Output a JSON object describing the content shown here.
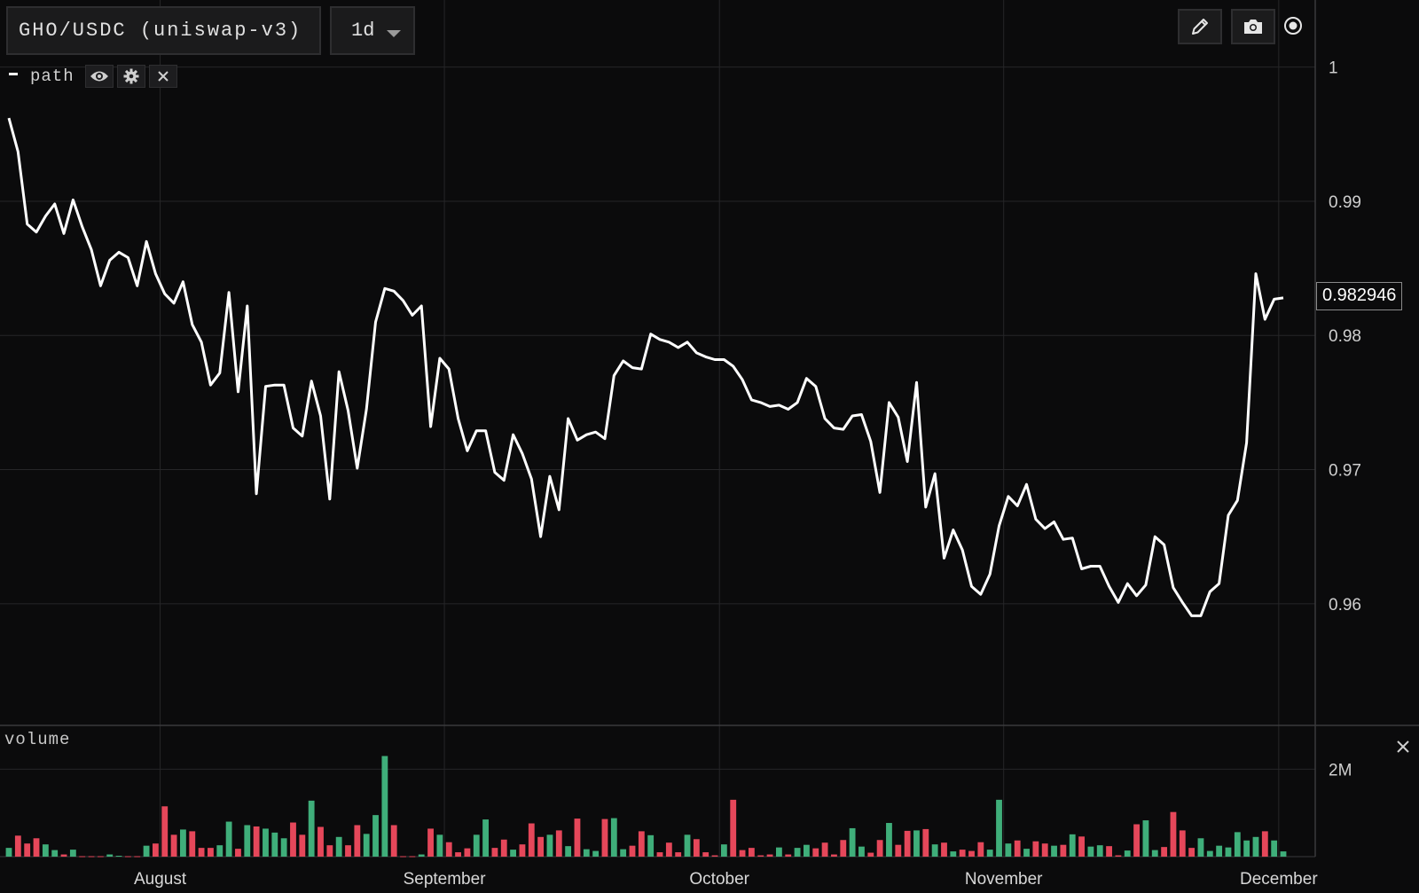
{
  "header": {
    "symbol": "GHO/USDC (uniswap-v3)",
    "interval": "1d"
  },
  "toolbar": {
    "draw_icon": "pencil-icon",
    "snapshot_icon": "camera-icon",
    "record_icon": "record-icon"
  },
  "legend": {
    "series_label": "path",
    "visibility_icon": "eye-icon",
    "settings_icon": "gear-icon",
    "remove_icon": "close-icon"
  },
  "price_tag": "0.982946",
  "volume_pane": {
    "label": "volume",
    "close_icon": "close-icon"
  },
  "colors": {
    "background": "#0b0b0c",
    "line": "#ffffff",
    "grid": "#262628",
    "volume_up": "#3fae7a",
    "volume_down": "#e5475a"
  },
  "chart_data": {
    "type": "line",
    "title": "GHO/USDC (uniswap-v3)",
    "series": [
      {
        "name": "path",
        "values": [
          0.9962,
          0.9937,
          0.9883,
          0.9877,
          0.9889,
          0.9898,
          0.9876,
          0.9901,
          0.9881,
          0.9864,
          0.9837,
          0.9856,
          0.9862,
          0.9858,
          0.9837,
          0.987,
          0.9846,
          0.9831,
          0.9824,
          0.984,
          0.9808,
          0.9795,
          0.9763,
          0.9772,
          0.9832,
          0.9758,
          0.9822,
          0.9682,
          0.9762,
          0.9763,
          0.9763,
          0.9731,
          0.9725,
          0.9766,
          0.974,
          0.9678,
          0.9773,
          0.9744,
          0.9701,
          0.9745,
          0.981,
          0.9835,
          0.9833,
          0.9826,
          0.9815,
          0.9822,
          0.9732,
          0.9783,
          0.9775,
          0.9738,
          0.9714,
          0.9729,
          0.9729,
          0.9698,
          0.9692,
          0.9726,
          0.9712,
          0.9693,
          0.965,
          0.9695,
          0.967,
          0.9738,
          0.9722,
          0.9726,
          0.9728,
          0.9723,
          0.977,
          0.9781,
          0.9776,
          0.9775,
          0.9801,
          0.9797,
          0.9795,
          0.9791,
          0.9795,
          0.9787,
          0.9784,
          0.9782,
          0.9782,
          0.9777,
          0.9767,
          0.9752,
          0.975,
          0.9747,
          0.9748,
          0.9745,
          0.975,
          0.9768,
          0.9762,
          0.9738,
          0.9731,
          0.973,
          0.974,
          0.9741,
          0.9721,
          0.9683,
          0.975,
          0.9739,
          0.9706,
          0.9765,
          0.9672,
          0.9697,
          0.9634,
          0.9655,
          0.964,
          0.9613,
          0.9607,
          0.9622,
          0.9658,
          0.968,
          0.9673,
          0.9689,
          0.9663,
          0.9656,
          0.9661,
          0.9648,
          0.9649,
          0.9626,
          0.9628,
          0.9628,
          0.9613,
          0.9601,
          0.9615,
          0.9606,
          0.9614,
          0.965,
          0.9644,
          0.9612,
          0.9601,
          0.9591,
          0.9591,
          0.9609,
          0.9615,
          0.9666,
          0.9677,
          0.972,
          0.9846,
          0.9812,
          0.9827,
          0.9828
        ]
      }
    ],
    "x_labels": [
      "August",
      "September",
      "October",
      "November",
      "December"
    ],
    "x_label_index": [
      16.5,
      47.5,
      77.5,
      108.5,
      138.5
    ],
    "y_ticks": [
      0.96,
      0.97,
      0.98,
      0.99,
      1
    ],
    "y_tick_labels": [
      "0.96",
      "0.97",
      "0.98",
      "0.99",
      "1"
    ],
    "ylim": [
      0.951,
      1.005
    ],
    "grid": true,
    "last_value": 0.982946,
    "volume": {
      "y_ticks": [
        2000000
      ],
      "y_tick_labels": [
        "2M"
      ],
      "ylim": [
        0,
        3000000
      ],
      "values": [
        200000,
        480000,
        300000,
        420000,
        280000,
        150000,
        50000,
        160000,
        10000,
        10000,
        10000,
        50000,
        20000,
        10000,
        10000,
        250000,
        300000,
        1150000,
        500000,
        620000,
        580000,
        200000,
        200000,
        260000,
        800000,
        180000,
        720000,
        690000,
        640000,
        550000,
        420000,
        780000,
        500000,
        1280000,
        680000,
        260000,
        450000,
        260000,
        720000,
        520000,
        950000,
        2300000,
        720000,
        10000,
        10000,
        50000,
        640000,
        500000,
        330000,
        100000,
        190000,
        500000,
        850000,
        200000,
        390000,
        160000,
        280000,
        760000,
        450000,
        500000,
        600000,
        240000,
        870000,
        170000,
        130000,
        860000,
        880000,
        170000,
        250000,
        580000,
        490000,
        100000,
        320000,
        100000,
        500000,
        400000,
        100000,
        30000,
        280000,
        1300000,
        150000,
        200000,
        30000,
        50000,
        210000,
        50000,
        200000,
        270000,
        190000,
        320000,
        50000,
        380000,
        650000,
        230000,
        90000,
        380000,
        770000,
        270000,
        590000,
        600000,
        630000,
        280000,
        320000,
        120000,
        160000,
        130000,
        330000,
        160000,
        1300000,
        300000,
        370000,
        180000,
        350000,
        300000,
        250000,
        270000,
        510000,
        460000,
        230000,
        260000,
        240000,
        30000,
        140000,
        740000,
        830000,
        150000,
        220000,
        1020000,
        600000,
        200000,
        420000,
        130000,
        250000,
        210000,
        560000,
        370000,
        450000,
        580000,
        370000,
        120000
      ]
    }
  }
}
